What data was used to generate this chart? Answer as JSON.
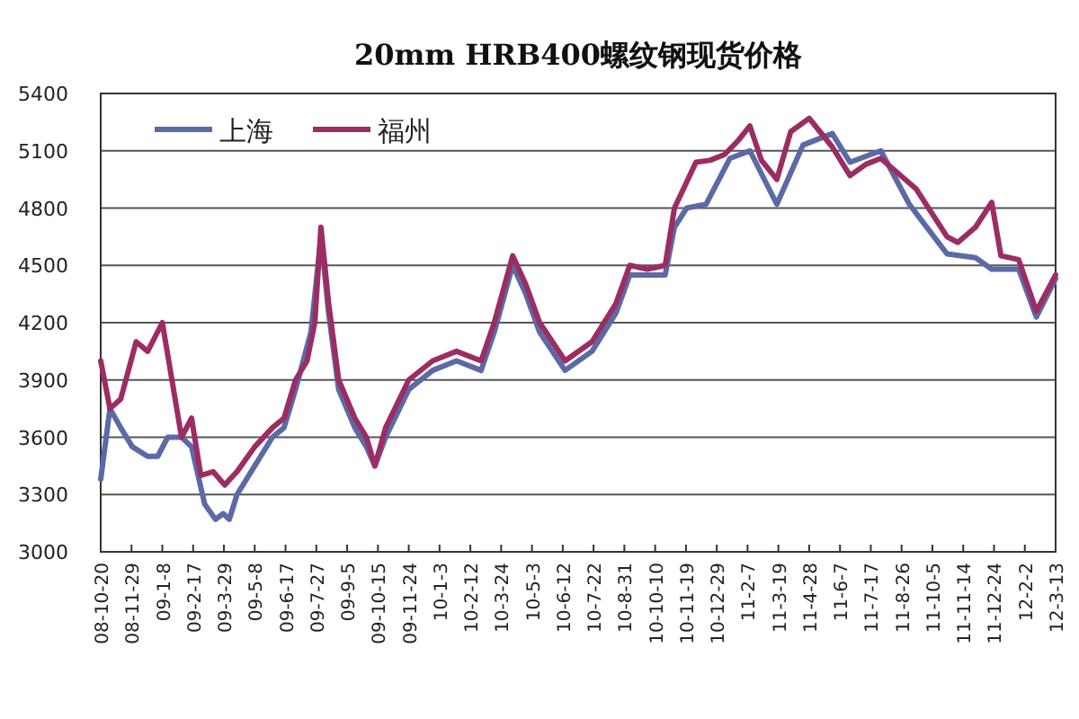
{
  "chart_data": {
    "type": "line",
    "title": "20mm HRB400螺纹钢现货价格",
    "xlim": [
      "2008-10-20",
      "2012-03-13"
    ],
    "xticks": [
      {
        "value": "2008-10-20",
        "label": "08-10-20"
      },
      {
        "value": "2008-11-29",
        "label": "08-11-29"
      },
      {
        "value": "2009-01-08",
        "label": "09-1-8"
      },
      {
        "value": "2009-02-17",
        "label": "09-2-17"
      },
      {
        "value": "2009-03-29",
        "label": "09-3-29"
      },
      {
        "value": "2009-05-08",
        "label": "09-5-8"
      },
      {
        "value": "2009-06-17",
        "label": "09-6-17"
      },
      {
        "value": "2009-07-27",
        "label": "09-7-27"
      },
      {
        "value": "2009-09-05",
        "label": "09-9-5"
      },
      {
        "value": "2009-10-15",
        "label": "09-10-15"
      },
      {
        "value": "2009-11-24",
        "label": "09-11-24"
      },
      {
        "value": "2010-01-03",
        "label": "10-1-3"
      },
      {
        "value": "2010-02-12",
        "label": "10-2-12"
      },
      {
        "value": "2010-03-24",
        "label": "10-3-24"
      },
      {
        "value": "2010-05-03",
        "label": "10-5-3"
      },
      {
        "value": "2010-06-12",
        "label": "10-6-12"
      },
      {
        "value": "2010-07-22",
        "label": "10-7-22"
      },
      {
        "value": "2010-08-31",
        "label": "10-8-31"
      },
      {
        "value": "2010-10-10",
        "label": "10-10-10"
      },
      {
        "value": "2010-11-19",
        "label": "10-11-19"
      },
      {
        "value": "2010-12-29",
        "label": "10-12-29"
      },
      {
        "value": "2011-02-07",
        "label": "11-2-7"
      },
      {
        "value": "2011-03-19",
        "label": "11-3-19"
      },
      {
        "value": "2011-04-28",
        "label": "11-4-28"
      },
      {
        "value": "2011-06-07",
        "label": "11-6-7"
      },
      {
        "value": "2011-07-17",
        "label": "11-7-17"
      },
      {
        "value": "2011-08-26",
        "label": "11-8-26"
      },
      {
        "value": "2011-10-05",
        "label": "11-10-5"
      },
      {
        "value": "2011-11-14",
        "label": "11-11-14"
      },
      {
        "value": "2011-12-24",
        "label": "11-12-24"
      },
      {
        "value": "2012-02-02",
        "label": "12-2-2"
      },
      {
        "value": "2012-03-13",
        "label": "12-3-13"
      }
    ],
    "ylim": [
      3000,
      5400
    ],
    "yticks": [
      3000,
      3300,
      3600,
      3900,
      4200,
      4500,
      4800,
      5100,
      5400
    ],
    "grid": "y",
    "legend": "top left",
    "marker": "none",
    "line_style": "solid",
    "series": [
      {
        "name": "上海",
        "color": "#5b6aa6",
        "x": [
          "2008-10-20",
          "2008-11-01",
          "2008-11-15",
          "2008-11-30",
          "2008-12-20",
          "2009-01-02",
          "2009-01-15",
          "2009-02-02",
          "2009-02-15",
          "2009-03-04",
          "2009-03-18",
          "2009-03-28",
          "2009-04-05",
          "2009-04-15",
          "2009-05-08",
          "2009-05-31",
          "2009-06-15",
          "2009-06-30",
          "2009-07-20",
          "2009-08-02",
          "2009-08-12",
          "2009-08-25",
          "2009-09-15",
          "2009-09-30",
          "2009-10-11",
          "2009-10-25",
          "2009-11-24",
          "2009-12-25",
          "2010-01-25",
          "2010-02-26",
          "2010-03-15",
          "2010-04-08",
          "2010-04-25",
          "2010-05-13",
          "2010-06-15",
          "2010-07-20",
          "2010-08-20",
          "2010-09-07",
          "2010-10-23",
          "2010-11-04",
          "2010-11-20",
          "2010-12-15",
          "2011-01-15",
          "2011-02-10",
          "2011-03-17",
          "2011-04-20",
          "2011-05-28",
          "2011-06-20",
          "2011-07-30",
          "2011-09-05",
          "2011-10-24",
          "2011-11-30",
          "2011-12-21",
          "2012-01-25",
          "2012-02-17",
          "2012-03-13"
        ],
        "values": [
          3380,
          3750,
          3650,
          3550,
          3500,
          3500,
          3600,
          3600,
          3550,
          3250,
          3170,
          3200,
          3170,
          3300,
          3450,
          3600,
          3650,
          3850,
          4150,
          4650,
          4250,
          3850,
          3650,
          3550,
          3450,
          3600,
          3850,
          3950,
          4000,
          3950,
          4150,
          4500,
          4350,
          4150,
          3950,
          4050,
          4250,
          4450,
          4450,
          4700,
          4800,
          4820,
          5060,
          5100,
          4820,
          5130,
          5190,
          5040,
          5100,
          4820,
          4560,
          4540,
          4480,
          4480,
          4230,
          4430
        ]
      },
      {
        "name": "福州",
        "color": "#9b2d62",
        "x": [
          "2008-10-20",
          "2008-11-01",
          "2008-11-15",
          "2008-12-05",
          "2008-12-20",
          "2009-01-08",
          "2009-02-02",
          "2009-02-15",
          "2009-02-27",
          "2009-03-15",
          "2009-03-30",
          "2009-04-15",
          "2009-05-08",
          "2009-05-31",
          "2009-06-15",
          "2009-06-30",
          "2009-07-15",
          "2009-07-25",
          "2009-08-02",
          "2009-08-12",
          "2009-08-25",
          "2009-09-15",
          "2009-09-30",
          "2009-10-11",
          "2009-10-25",
          "2009-11-24",
          "2009-12-25",
          "2010-01-25",
          "2010-02-26",
          "2010-03-15",
          "2010-04-08",
          "2010-04-25",
          "2010-05-13",
          "2010-06-15",
          "2010-07-20",
          "2010-08-20",
          "2010-09-07",
          "2010-09-30",
          "2010-10-23",
          "2010-11-04",
          "2010-12-02",
          "2010-12-20",
          "2011-01-08",
          "2011-01-25",
          "2011-02-10",
          "2011-02-25",
          "2011-03-17",
          "2011-04-04",
          "2011-04-28",
          "2011-05-12",
          "2011-05-28",
          "2011-06-20",
          "2011-07-11",
          "2011-07-30",
          "2011-08-22",
          "2011-09-14",
          "2011-10-08",
          "2011-10-24",
          "2011-11-07",
          "2011-11-30",
          "2011-12-21",
          "2012-01-02",
          "2012-01-25",
          "2012-02-17",
          "2012-03-13"
        ],
        "values": [
          4000,
          3750,
          3800,
          4100,
          4050,
          4200,
          3600,
          3700,
          3400,
          3420,
          3350,
          3420,
          3550,
          3650,
          3700,
          3900,
          4000,
          4200,
          4700,
          4300,
          3900,
          3700,
          3600,
          3450,
          3650,
          3900,
          4000,
          4050,
          4000,
          4200,
          4550,
          4400,
          4200,
          4000,
          4100,
          4300,
          4500,
          4480,
          4500,
          4800,
          5040,
          5050,
          5080,
          5150,
          5230,
          5050,
          4950,
          5200,
          5270,
          5200,
          5120,
          4970,
          5030,
          5060,
          4980,
          4900,
          4750,
          4650,
          4620,
          4700,
          4830,
          4550,
          4530,
          4260,
          4450
        ]
      }
    ]
  }
}
